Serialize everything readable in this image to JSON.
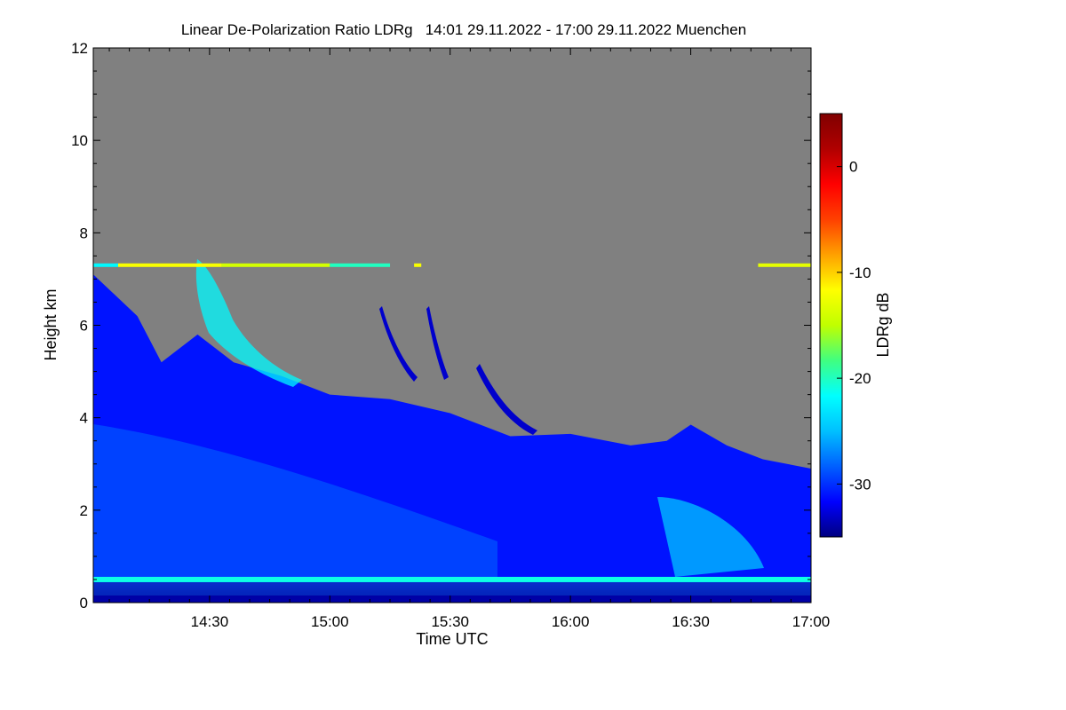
{
  "chart_data": {
    "type": "heatmap",
    "title": "Linear De-Polarization Ratio LDRg   14:01 29.11.2022 - 17:00 29.11.2022 Muenchen",
    "xlabel": "Time UTC",
    "ylabel": "Height km",
    "x_range_hours": [
      14.0167,
      17.0
    ],
    "y_range_km": [
      0,
      12
    ],
    "x_ticks": [
      {
        "value": 14.5,
        "label": "14:30"
      },
      {
        "value": 15.0,
        "label": "15:00"
      },
      {
        "value": 15.5,
        "label": "15:30"
      },
      {
        "value": 16.0,
        "label": "16:00"
      },
      {
        "value": 16.5,
        "label": "16:30"
      },
      {
        "value": 17.0,
        "label": "17:00"
      }
    ],
    "y_ticks": [
      {
        "value": 0,
        "label": "0"
      },
      {
        "value": 2,
        "label": "2"
      },
      {
        "value": 4,
        "label": "4"
      },
      {
        "value": 6,
        "label": "6"
      },
      {
        "value": 8,
        "label": "8"
      },
      {
        "value": 10,
        "label": "10"
      },
      {
        "value": 12,
        "label": "12"
      }
    ],
    "colorbar": {
      "label": "LDRg dB",
      "range_db": [
        -35,
        5
      ],
      "ticks": [
        {
          "value": 0,
          "label": "0"
        },
        {
          "value": -10,
          "label": "-10"
        },
        {
          "value": -20,
          "label": "-20"
        },
        {
          "value": -30,
          "label": "-30"
        }
      ],
      "colors": [
        "#000080",
        "#0000ff",
        "#0060ff",
        "#00c0ff",
        "#00ffff",
        "#40ff80",
        "#c0ff00",
        "#ffff00",
        "#ffa000",
        "#ff4000",
        "#ff0000",
        "#b00000",
        "#800000"
      ]
    },
    "no_data_color": "#808080",
    "signal_top_km": [
      {
        "t": 14.0167,
        "h": 7.1
      },
      {
        "t": 14.2,
        "h": 6.2
      },
      {
        "t": 14.3,
        "h": 5.2
      },
      {
        "t": 14.35,
        "h": 5.4
      },
      {
        "t": 14.45,
        "h": 5.8
      },
      {
        "t": 14.6,
        "h": 5.2
      },
      {
        "t": 14.8,
        "h": 4.9
      },
      {
        "t": 15.0,
        "h": 4.5
      },
      {
        "t": 15.25,
        "h": 4.4
      },
      {
        "t": 15.5,
        "h": 4.1
      },
      {
        "t": 15.75,
        "h": 3.6
      },
      {
        "t": 16.0,
        "h": 3.65
      },
      {
        "t": 16.25,
        "h": 3.4
      },
      {
        "t": 16.4,
        "h": 3.5
      },
      {
        "t": 16.5,
        "h": 3.85
      },
      {
        "t": 16.65,
        "h": 3.4
      },
      {
        "t": 16.8,
        "h": 3.1
      },
      {
        "t": 17.0,
        "h": 2.9
      }
    ],
    "features": {
      "cirrus_layer_km": 7.3,
      "cirrus_ldr_db": -12,
      "low_layer_km": 0.5,
      "low_layer_ldr_db": -21,
      "bulk_ldr_db": -31,
      "fallstreak_ldr_db": -22
    }
  }
}
